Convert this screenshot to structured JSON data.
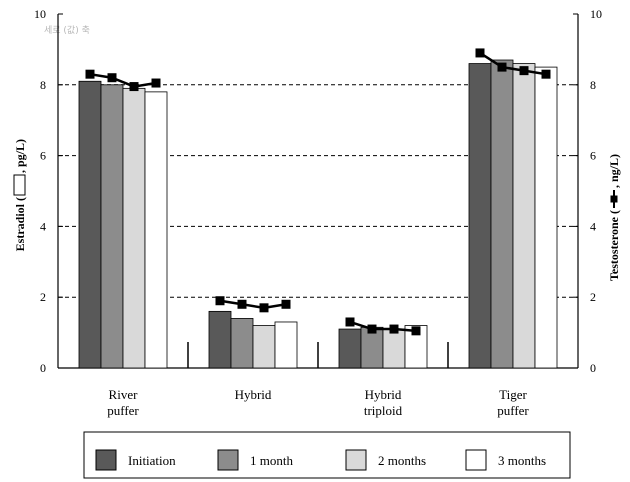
{
  "chart_data": {
    "type": "bar",
    "categories": [
      [
        "River",
        "puffer"
      ],
      [
        "Hybrid"
      ],
      [
        "Hybrid",
        "triploid"
      ],
      [
        "Tiger",
        "puffer"
      ]
    ],
    "series": [
      {
        "name": "Initiation",
        "values": [
          8.1,
          1.6,
          1.1,
          8.6
        ],
        "color": "#595959"
      },
      {
        "name": "1 month",
        "values": [
          8.0,
          1.4,
          1.15,
          8.7
        ],
        "color": "#8c8c8c"
      },
      {
        "name": "2 months",
        "values": [
          7.9,
          1.2,
          1.1,
          8.6
        ],
        "color": "#d9d9d9"
      },
      {
        "name": "3 months",
        "values": [
          7.8,
          1.3,
          1.2,
          8.5
        ],
        "color": "#ffffff"
      }
    ],
    "line_series": {
      "name": "Testosterone",
      "values": [
        [
          8.3,
          8.2,
          7.95,
          8.05
        ],
        [
          1.9,
          1.8,
          1.7,
          1.8
        ],
        [
          1.3,
          1.1,
          1.1,
          1.05
        ],
        [
          8.9,
          8.5,
          8.4,
          8.3
        ]
      ]
    },
    "ylim": [
      0,
      10
    ],
    "yticks": [
      0,
      2,
      4,
      6,
      8,
      10
    ],
    "gridlines_y": [
      2,
      4,
      6,
      8
    ],
    "ylabel_left": [
      "Estradiol (",
      ", pg/L)"
    ],
    "ylabel_right": [
      "Testosterone (",
      ", ng/L)"
    ],
    "watermark": "세로 (값) 축",
    "legend_position": "bottom"
  }
}
